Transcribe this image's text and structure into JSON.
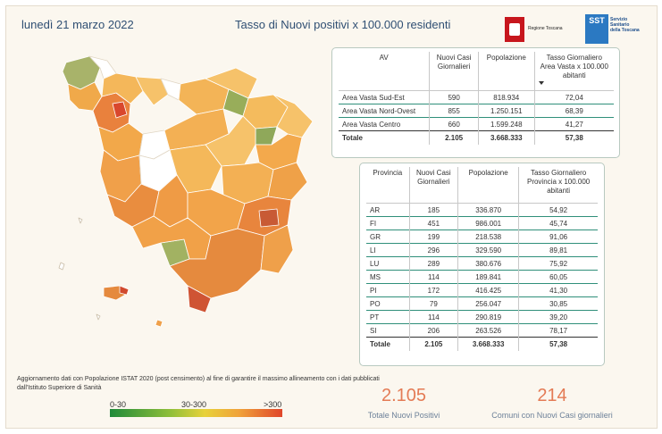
{
  "header": {
    "date": "lunedì 21 marzo 2022",
    "title": "Tasso di Nuovi positivi x 100.000 residenti"
  },
  "logos": {
    "regione": "Regione Toscana",
    "sst_badge": "SST",
    "sst_text": "Servizio Sanitario della Toscana"
  },
  "colors": {
    "low": "#1f8a3a",
    "mid": "#e8d23a",
    "high": "#e0462a",
    "accent_kpi": "#e47b55",
    "title": "#2f4f73"
  },
  "area_vasta_table": {
    "headers": [
      "AV",
      "Nuovi Casi Giornalieri",
      "Popolazione",
      "Tasso Giornaliero Area Vasta x 100.000 abitanti"
    ],
    "rows": [
      [
        "Area Vasta Sud-Est",
        "590",
        "818.934",
        "72,04"
      ],
      [
        "Area Vasta Nord-Ovest",
        "855",
        "1.250.151",
        "68,39"
      ],
      [
        "Area Vasta Centro",
        "660",
        "1.599.248",
        "41,27"
      ]
    ],
    "total": [
      "Totale",
      "2.105",
      "3.668.333",
      "57,38"
    ]
  },
  "provincia_table": {
    "headers": [
      "Provincia",
      "Nuovi Casi Giornalieri",
      "Popolazione",
      "Tasso Giornaliero Provincia x 100.000 abitanti"
    ],
    "rows": [
      [
        "AR",
        "185",
        "336.870",
        "54,92"
      ],
      [
        "FI",
        "451",
        "986.001",
        "45,74"
      ],
      [
        "GR",
        "199",
        "218.538",
        "91,06"
      ],
      [
        "LI",
        "296",
        "329.590",
        "89,81"
      ],
      [
        "LU",
        "289",
        "380.676",
        "75,92"
      ],
      [
        "MS",
        "114",
        "189.841",
        "60,05"
      ],
      [
        "PI",
        "172",
        "416.425",
        "41,30"
      ],
      [
        "PO",
        "79",
        "256.047",
        "30,85"
      ],
      [
        "PT",
        "114",
        "290.819",
        "39,20"
      ],
      [
        "SI",
        "206",
        "263.526",
        "78,17"
      ]
    ],
    "total": [
      "Totale",
      "2.105",
      "3.668.333",
      "57,38"
    ]
  },
  "note": "Aggiornamento dati con Popolazione ISTAT 2020 (post censimento) al fine di garantire il massimo allineamento con i dati pubblicati dall'Istituto Superiore di Sanità",
  "legend": {
    "low_label": "0-30",
    "mid_label": "30-300",
    "high_label": ">300"
  },
  "kpis": {
    "total_value": "2.105",
    "total_label": "Totale Nuovi Positivi",
    "comuni_value": "214",
    "comuni_label": "Comuni con Nuovi Casi giornalieri"
  }
}
